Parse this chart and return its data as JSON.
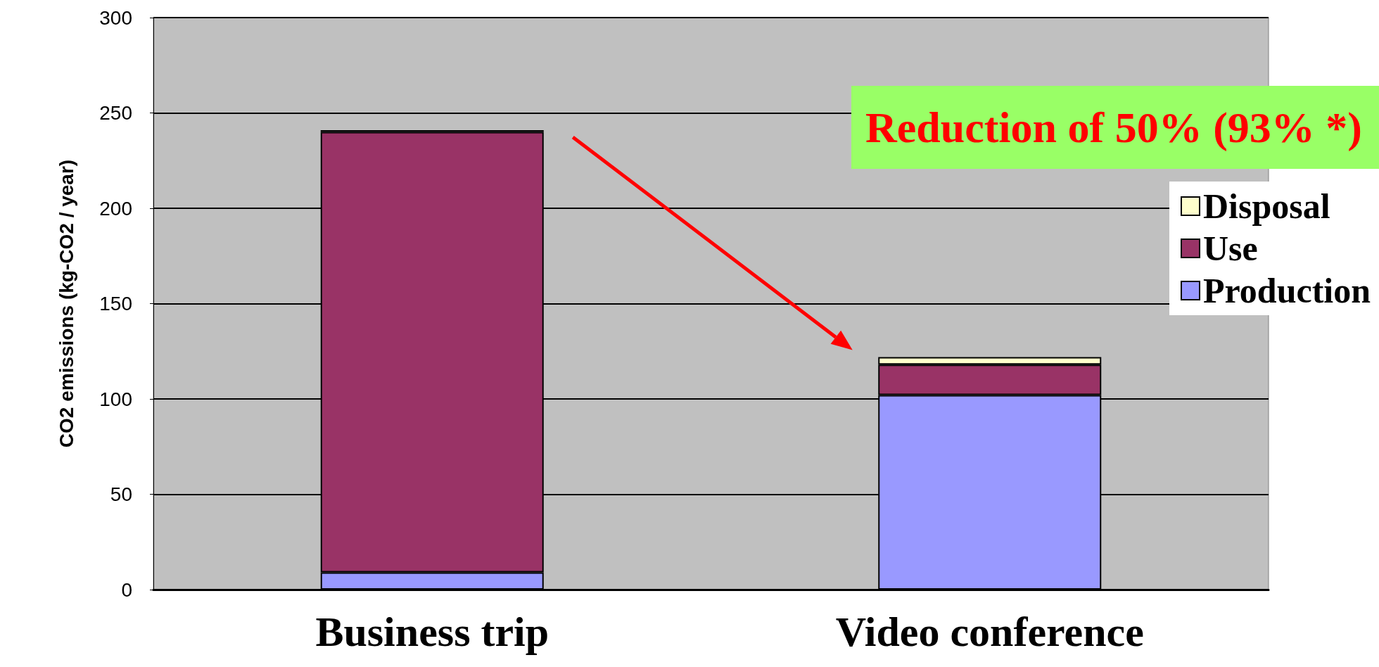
{
  "chart_data": {
    "type": "bar",
    "stacked": true,
    "ylabel": "CO2 emissions (kg-CO2 / year)",
    "categories": [
      "Business trip",
      "Video conference"
    ],
    "series": [
      {
        "name": "Production",
        "color": "#9999ff",
        "values": [
          9,
          102
        ]
      },
      {
        "name": "Use",
        "color": "#993366",
        "values": [
          231,
          16
        ]
      },
      {
        "name": "Disposal",
        "color": "#ffffcc",
        "values": [
          1,
          4
        ]
      }
    ],
    "ylim": [
      0,
      300
    ],
    "yticks": [
      0,
      50,
      100,
      150,
      200,
      250,
      300
    ],
    "grid": "y",
    "legend": "right",
    "annotations": [
      "Reduction of 50% (93% *)"
    ]
  }
}
